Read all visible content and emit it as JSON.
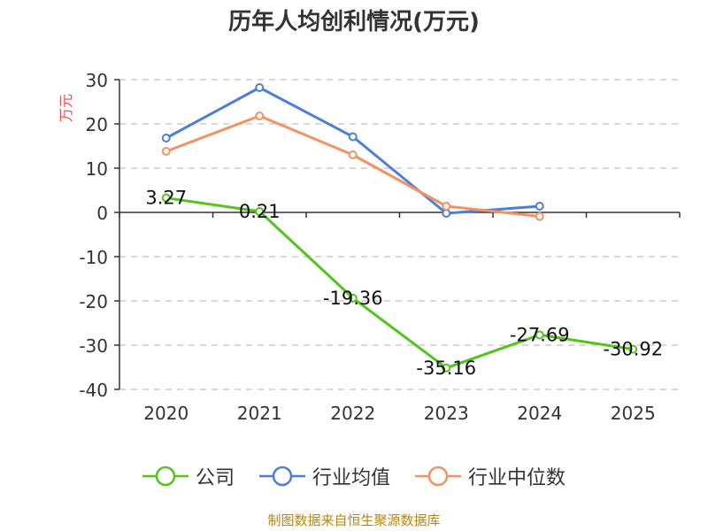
{
  "title": "历年人均创利情况(万元)",
  "footer": "制图数据来自恒生聚源数据库",
  "chart_data": {
    "type": "line",
    "ylabel": "万元",
    "categories": [
      "2020",
      "2021",
      "2022",
      "2023",
      "2024",
      "2025"
    ],
    "ylim": [
      -40,
      30
    ],
    "yticks": [
      30,
      20,
      10,
      0,
      -10,
      -20,
      -30,
      -40
    ],
    "grid": true,
    "legend_position": "bottom",
    "series": [
      {
        "name": "公司",
        "color": "#52c41a",
        "values": [
          3.27,
          0.21,
          -19.36,
          -35.16,
          -27.69,
          -30.92
        ],
        "labels": [
          "3.27",
          "0.21",
          "-19.36",
          "-35.16",
          "-27.69",
          "-30.92"
        ]
      },
      {
        "name": "行业均值",
        "color": "#4e7fd8",
        "values": [
          16.8,
          28.2,
          17.1,
          -0.2,
          1.4,
          null
        ]
      },
      {
        "name": "行业中位数",
        "color": "#f39262",
        "values": [
          13.8,
          21.8,
          13.0,
          1.4,
          -0.9,
          null
        ]
      }
    ]
  }
}
